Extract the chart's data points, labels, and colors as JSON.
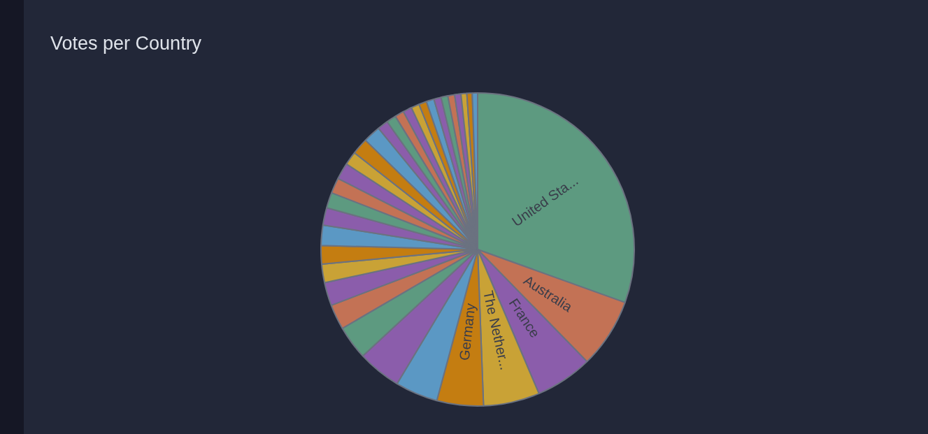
{
  "chart_data": {
    "type": "pie",
    "title": "Votes per Country",
    "categories": [
      "United Sta...",
      "Australia",
      "France",
      "The Nether...",
      "Germany",
      null,
      null,
      null,
      null,
      null,
      null,
      null,
      null,
      null,
      null,
      null,
      null,
      null,
      null,
      null,
      null,
      null,
      null,
      null,
      null,
      null,
      null,
      null,
      null,
      null,
      null,
      null,
      null,
      null
    ],
    "values": [
      30.5,
      7.2,
      5.9,
      5.8,
      4.8,
      4.4,
      4.5,
      3.5,
      2.6,
      2.4,
      1.9,
      1.9,
      2.1,
      1.8,
      1.6,
      1.6,
      1.7,
      1.4,
      1.7,
      1.8,
      1.1,
      1.0,
      0.95,
      0.9,
      0.85,
      0.8,
      0.8,
      0.75,
      0.7,
      0.7,
      0.65,
      0.6,
      0.55,
      0.55
    ],
    "colors": [
      "#5d9a80",
      "#c37255",
      "#8b5dab",
      "#c9a236",
      "#c47d11",
      "#5b98c4",
      "#8b5dab",
      "#5d9a80",
      "#c37255",
      "#8b5dab",
      "#c9a236",
      "#c47d11",
      "#5b98c4",
      "#8b5dab",
      "#5d9a80",
      "#c37255",
      "#8b5dab",
      "#c9a236",
      "#c47d11",
      "#5b98c4",
      "#8b5dab",
      "#5d9a80",
      "#c37255",
      "#8b5dab",
      "#c9a236",
      "#c47d11",
      "#5b98c4",
      "#8b5dab",
      "#5d9a80",
      "#c37255",
      "#8b5dab",
      "#c9a236",
      "#c47d11",
      "#5b98c4"
    ],
    "legend": false
  }
}
